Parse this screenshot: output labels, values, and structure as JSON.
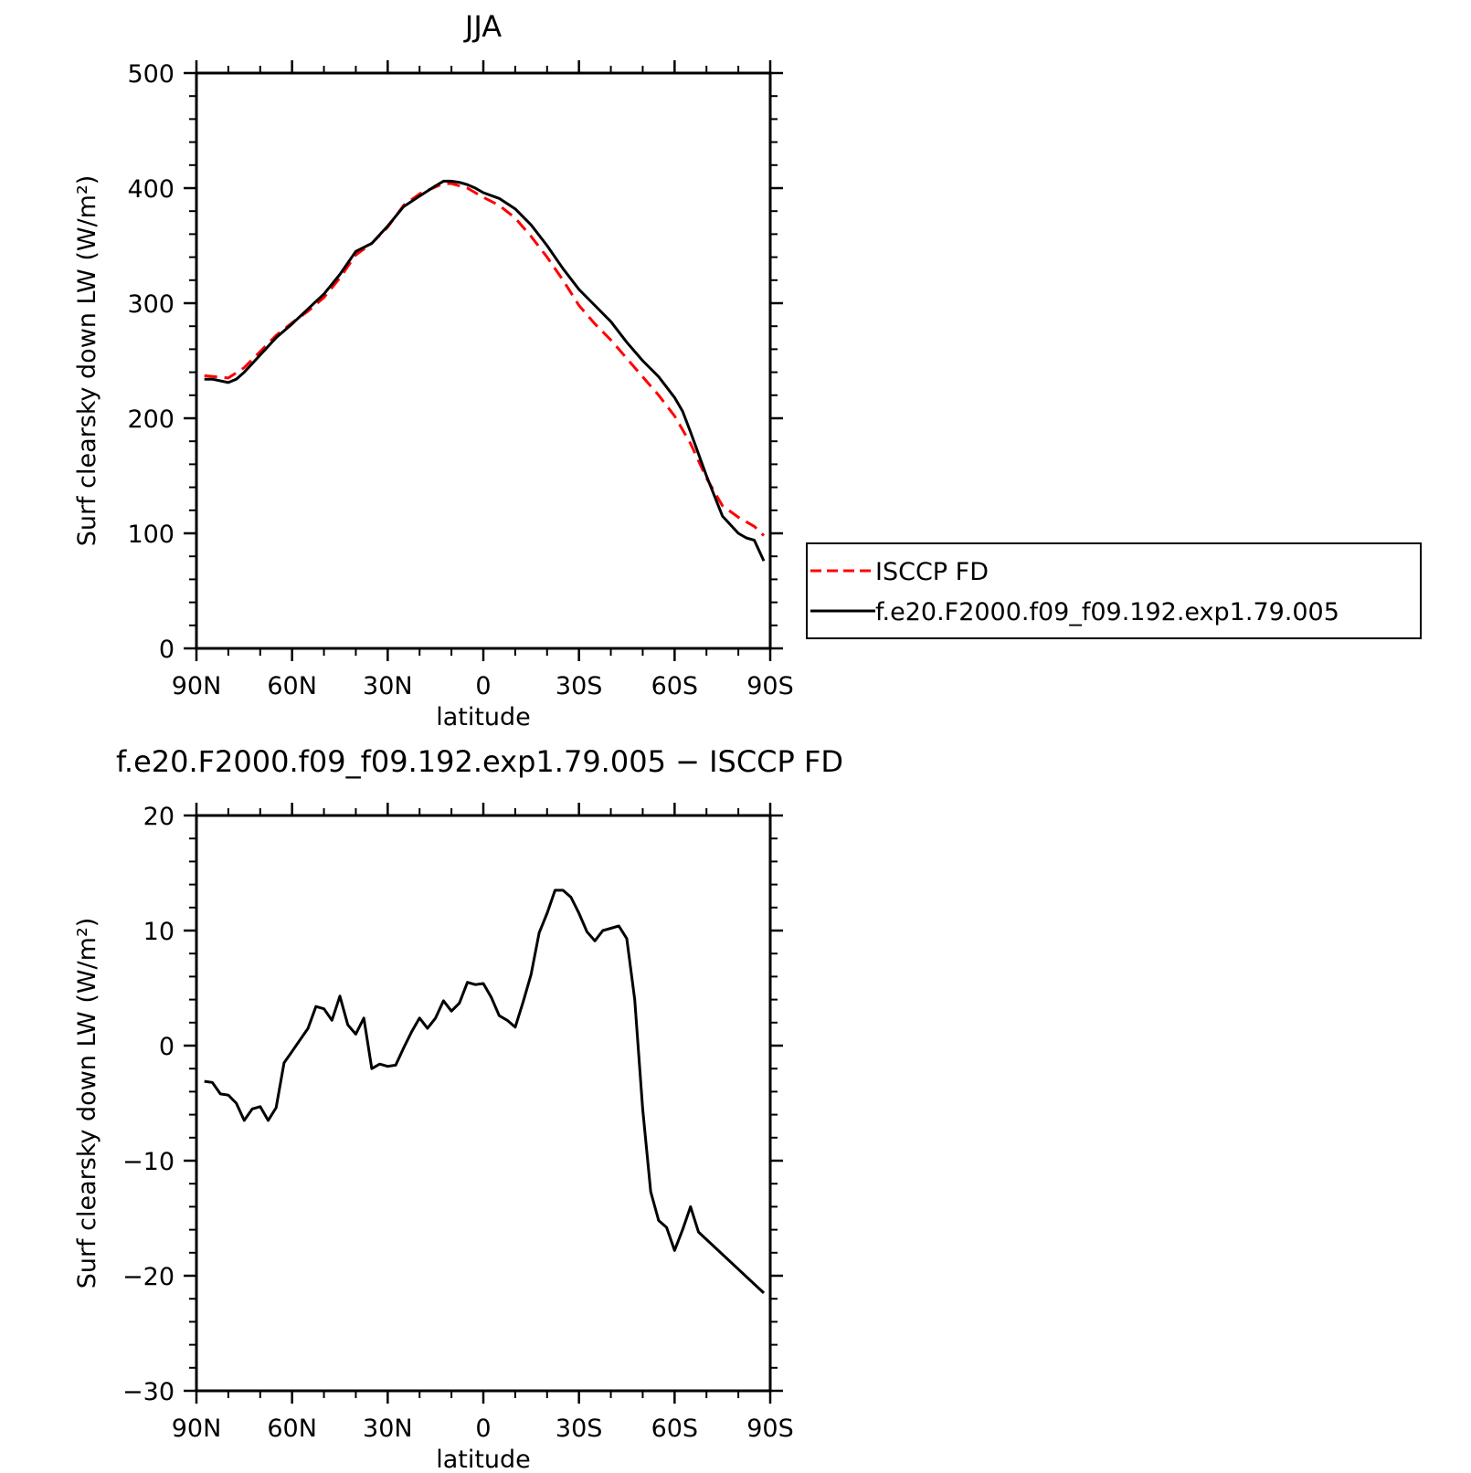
{
  "chart_data": [
    {
      "type": "line",
      "title": "JJA",
      "xlabel": "latitude",
      "ylabel": "Surf clearsky down LW (W/m²)",
      "xlim": [
        90,
        -90
      ],
      "ylim": [
        0,
        500
      ],
      "xticks": [
        {
          "value": 90,
          "label": "90N"
        },
        {
          "value": 60,
          "label": "60N"
        },
        {
          "value": 30,
          "label": "30N"
        },
        {
          "value": 0,
          "label": "0"
        },
        {
          "value": -30,
          "label": "30S"
        },
        {
          "value": -60,
          "label": "60S"
        },
        {
          "value": -90,
          "label": "90S"
        }
      ],
      "yticks": [
        {
          "value": 0,
          "label": "0"
        },
        {
          "value": 100,
          "label": "100"
        },
        {
          "value": 200,
          "label": "200"
        },
        {
          "value": 300,
          "label": "300"
        },
        {
          "value": 400,
          "label": "400"
        },
        {
          "value": 500,
          "label": "500"
        }
      ],
      "legend_position": "right",
      "series": [
        {
          "name": "ISCCP FD",
          "color": "#ff0000",
          "style": "dashed",
          "x": [
            87.5,
            80,
            75,
            70,
            65,
            60,
            55,
            50,
            45,
            40,
            35,
            30,
            25,
            20,
            15,
            12.5,
            10,
            5,
            0,
            -5,
            -10,
            -15,
            -20,
            -25,
            -30,
            -35,
            -40,
            -45,
            -50,
            -55,
            -60,
            -65,
            -70,
            -75,
            -80,
            -85,
            -88
          ],
          "y": [
            237,
            235,
            244,
            258,
            272,
            283,
            293,
            305,
            322,
            342,
            352,
            366,
            385,
            395,
            401,
            404,
            404,
            400,
            392,
            385,
            374,
            358,
            340,
            320,
            298,
            282,
            268,
            252,
            236,
            220,
            202,
            178,
            148,
            124,
            114,
            106,
            98
          ]
        },
        {
          "name": "f.e20.F2000.f09_f09.192.exp1.79.005",
          "color": "#000000",
          "style": "solid",
          "x": [
            87.5,
            85,
            80,
            77.5,
            75,
            70,
            65,
            60,
            55,
            50,
            45,
            40,
            35,
            30,
            25,
            20,
            15,
            12.5,
            10,
            7.5,
            5,
            2.5,
            0,
            -5,
            -10,
            -15,
            -20,
            -25,
            -30,
            -35,
            -40,
            -45,
            -50,
            -55,
            -60,
            -62.5,
            -65,
            -70,
            -75,
            -80,
            -82.5,
            -85,
            -88
          ],
          "y": [
            234,
            234,
            231,
            234,
            240,
            255,
            270,
            282,
            295,
            308,
            325,
            345,
            352,
            367,
            384,
            393,
            402,
            406,
            406,
            405,
            403,
            400,
            396,
            391,
            382,
            368,
            350,
            330,
            312,
            298,
            284,
            266,
            250,
            236,
            218,
            206,
            188,
            150,
            115,
            100,
            96,
            94,
            76
          ]
        }
      ]
    },
    {
      "type": "line",
      "title": "f.e20.F2000.f09_f09.192.exp1.79.005 − ISCCP FD",
      "xlabel": "latitude",
      "ylabel": "Surf clearsky down LW (W/m²)",
      "xlim": [
        90,
        -90
      ],
      "ylim": [
        -30,
        20
      ],
      "xticks": [
        {
          "value": 90,
          "label": "90N"
        },
        {
          "value": 60,
          "label": "60N"
        },
        {
          "value": 30,
          "label": "30N"
        },
        {
          "value": 0,
          "label": "0"
        },
        {
          "value": -30,
          "label": "30S"
        },
        {
          "value": -60,
          "label": "60S"
        },
        {
          "value": -90,
          "label": "90S"
        }
      ],
      "yticks": [
        {
          "value": -30,
          "label": "−30"
        },
        {
          "value": -20,
          "label": "−20"
        },
        {
          "value": -10,
          "label": "−10"
        },
        {
          "value": 0,
          "label": "0"
        },
        {
          "value": 10,
          "label": "10"
        },
        {
          "value": 20,
          "label": "20"
        }
      ],
      "series": [
        {
          "name": "",
          "color": "#000000",
          "style": "solid",
          "x": [
            87.5,
            85,
            82.5,
            80,
            77.5,
            75,
            72.5,
            70,
            67.5,
            65,
            62.5,
            60,
            57.5,
            55,
            52.5,
            50,
            47.5,
            45,
            42.5,
            40,
            37.5,
            35,
            32.5,
            30,
            27.5,
            25,
            22.5,
            20,
            17.5,
            15,
            12.5,
            10,
            7.5,
            5,
            2.5,
            0,
            -2.5,
            -5,
            -7.5,
            -10,
            -12.5,
            -15,
            -17.5,
            -20,
            -22.5,
            -25,
            -27.5,
            -30,
            -32.5,
            -35,
            -37.5,
            -40,
            -42.5,
            -45,
            -47.5,
            -50,
            -52.5,
            -55,
            -57.5,
            -60,
            -62.5,
            -65,
            -67.5,
            -70,
            -72.5,
            -75,
            -77.5,
            -80,
            -82.5,
            -85,
            -88
          ],
          "y": [
            -3.1,
            -3.2,
            -4.2,
            -4.3,
            -5.0,
            -6.5,
            -5.5,
            -5.3,
            -6.5,
            -5.4,
            -1.5,
            -0.5,
            0.5,
            1.5,
            3.4,
            3.2,
            2.2,
            4.3,
            1.8,
            1.0,
            2.4,
            -2.0,
            -1.6,
            -1.8,
            -1.7,
            -0.2,
            1.2,
            2.4,
            1.5,
            2.4,
            3.9,
            3.0,
            3.7,
            5.5,
            5.3,
            5.4,
            4.2,
            2.6,
            2.2,
            1.6,
            3.8,
            6.2,
            9.8,
            11.5,
            13.5,
            13.5,
            12.9,
            11.5,
            9.9,
            9.1,
            10.0,
            10.2,
            10.4,
            9.3,
            4.0,
            -5.5,
            -12.7,
            -15.2,
            -15.8,
            -17.8,
            -16.0,
            -14.0,
            -16.2,
            -21.5,
            -21.5,
            -21.5,
            -21.5,
            -21.5,
            -21.5,
            -21.5,
            -21.5
          ]
        }
      ]
    }
  ]
}
